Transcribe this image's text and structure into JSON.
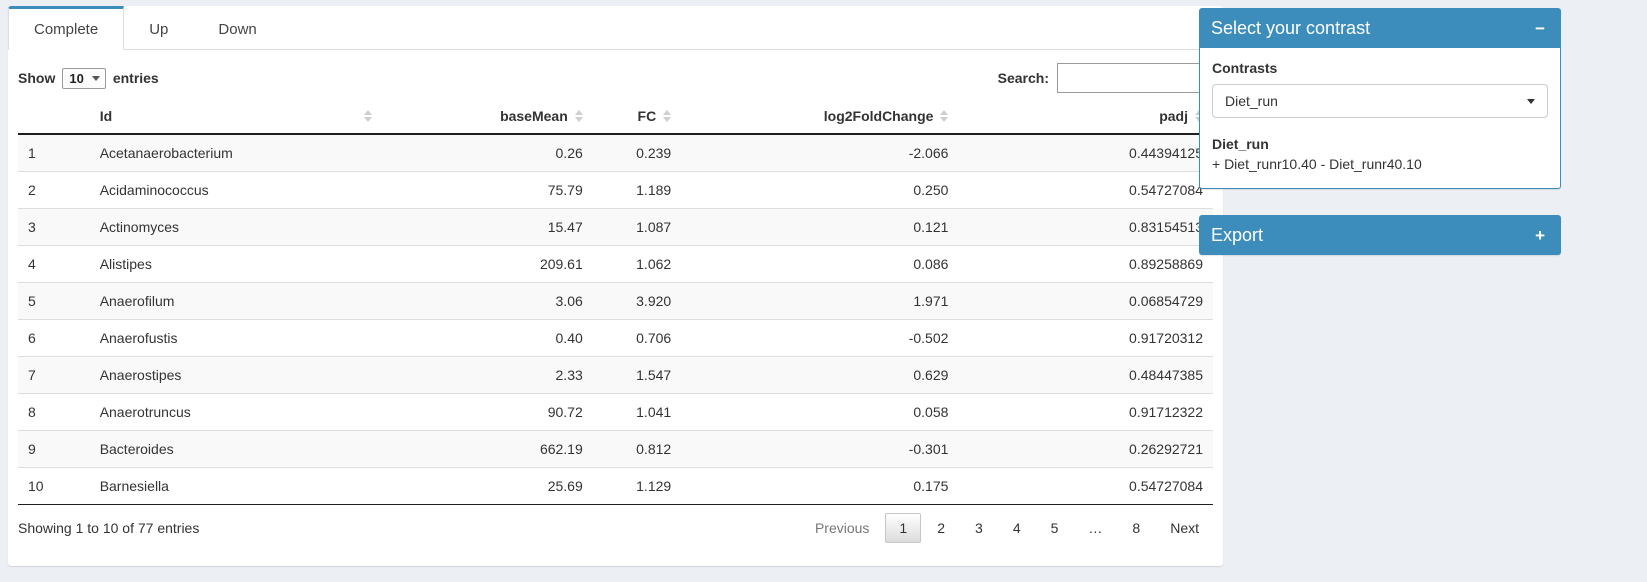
{
  "colors": {
    "accent": "#3c8dbc",
    "page_bg": "#ecf0f5"
  },
  "tabs": {
    "complete": "Complete",
    "up": "Up",
    "down": "Down"
  },
  "length_menu": {
    "show": "Show",
    "value": "10",
    "entries": "entries"
  },
  "search": {
    "label": "Search:",
    "value": "",
    "placeholder": ""
  },
  "table": {
    "headers": {
      "id": "Id",
      "base_mean": "baseMean",
      "fc": "FC",
      "log2fc": "log2FoldChange",
      "padj": "padj"
    },
    "rows": [
      {
        "n": "1",
        "id": "Acetanaerobacterium",
        "base_mean": "0.26",
        "fc": "0.239",
        "log2fc": "-2.066",
        "padj": "0.44394125"
      },
      {
        "n": "2",
        "id": "Acidaminococcus",
        "base_mean": "75.79",
        "fc": "1.189",
        "log2fc": "0.250",
        "padj": "0.54727084"
      },
      {
        "n": "3",
        "id": "Actinomyces",
        "base_mean": "15.47",
        "fc": "1.087",
        "log2fc": "0.121",
        "padj": "0.83154513"
      },
      {
        "n": "4",
        "id": "Alistipes",
        "base_mean": "209.61",
        "fc": "1.062",
        "log2fc": "0.086",
        "padj": "0.89258869"
      },
      {
        "n": "5",
        "id": "Anaerofilum",
        "base_mean": "3.06",
        "fc": "3.920",
        "log2fc": "1.971",
        "padj": "0.06854729"
      },
      {
        "n": "6",
        "id": "Anaerofustis",
        "base_mean": "0.40",
        "fc": "0.706",
        "log2fc": "-0.502",
        "padj": "0.91720312"
      },
      {
        "n": "7",
        "id": "Anaerostipes",
        "base_mean": "2.33",
        "fc": "1.547",
        "log2fc": "0.629",
        "padj": "0.48447385"
      },
      {
        "n": "8",
        "id": "Anaerotruncus",
        "base_mean": "90.72",
        "fc": "1.041",
        "log2fc": "0.058",
        "padj": "0.91712322"
      },
      {
        "n": "9",
        "id": "Bacteroides",
        "base_mean": "662.19",
        "fc": "0.812",
        "log2fc": "-0.301",
        "padj": "0.26292721"
      },
      {
        "n": "10",
        "id": "Barnesiella",
        "base_mean": "25.69",
        "fc": "1.129",
        "log2fc": "0.175",
        "padj": "0.54727084"
      }
    ]
  },
  "info": "Showing 1 to 10 of 77 entries",
  "pagination": {
    "previous": "Previous",
    "pages": [
      "1",
      "2",
      "3",
      "4",
      "5",
      "…",
      "8"
    ],
    "active_page": "1",
    "next": "Next"
  },
  "contrast_box": {
    "title": "Select your contrast",
    "collapse_icon": "−",
    "contrasts_label": "Contrasts",
    "selected_contrast": "Diet_run",
    "detail_name": "Diet_run",
    "detail_formula": "+ Diet_runr10.40 - Diet_runr40.10"
  },
  "export_box": {
    "title": "Export",
    "expand_icon": "+"
  }
}
